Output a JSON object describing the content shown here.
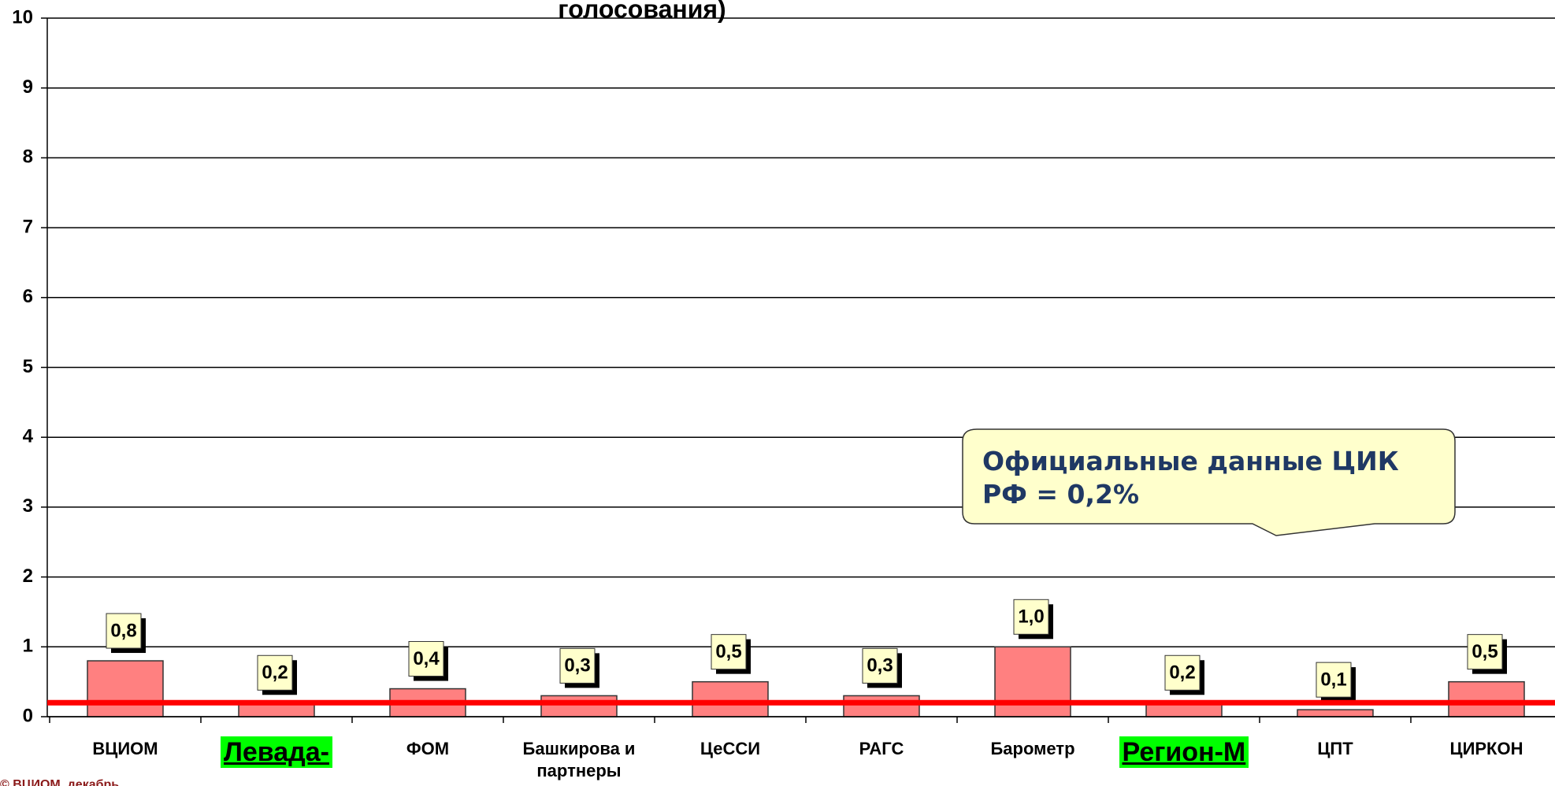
{
  "chart_data": {
    "type": "bar",
    "title": "голосования)",
    "categories": [
      "ВЦИОМ",
      "Левада-",
      "ФОМ",
      "Башкирова и партнеры",
      "ЦеССИ",
      "РАГС",
      "Барометр",
      "Регион-М",
      "ЦПТ",
      "ЦИРКОН"
    ],
    "values": [
      0.8,
      0.2,
      0.4,
      0.3,
      0.5,
      0.3,
      1.0,
      0.2,
      0.1,
      0.5
    ],
    "value_labels": [
      "0,8",
      "0,2",
      "0,4",
      "0,3",
      "0,5",
      "0,3",
      "1,0",
      "0,2",
      "0,1",
      "0,5"
    ],
    "color": "#ff8080",
    "ylim": [
      0,
      10
    ],
    "yticks": [
      0,
      1,
      2,
      3,
      4,
      5,
      6,
      7,
      8,
      9,
      10
    ],
    "grid": true,
    "category_highlight": {
      "color": "#00ff00",
      "indices": [
        1,
        7
      ]
    },
    "reference_line": {
      "value": 0.2,
      "color": "#ff0000"
    },
    "annotation": "Официальные данные ЦИК РФ = 0,2%",
    "footnote": "© ВЦИОМ, декабрь"
  }
}
